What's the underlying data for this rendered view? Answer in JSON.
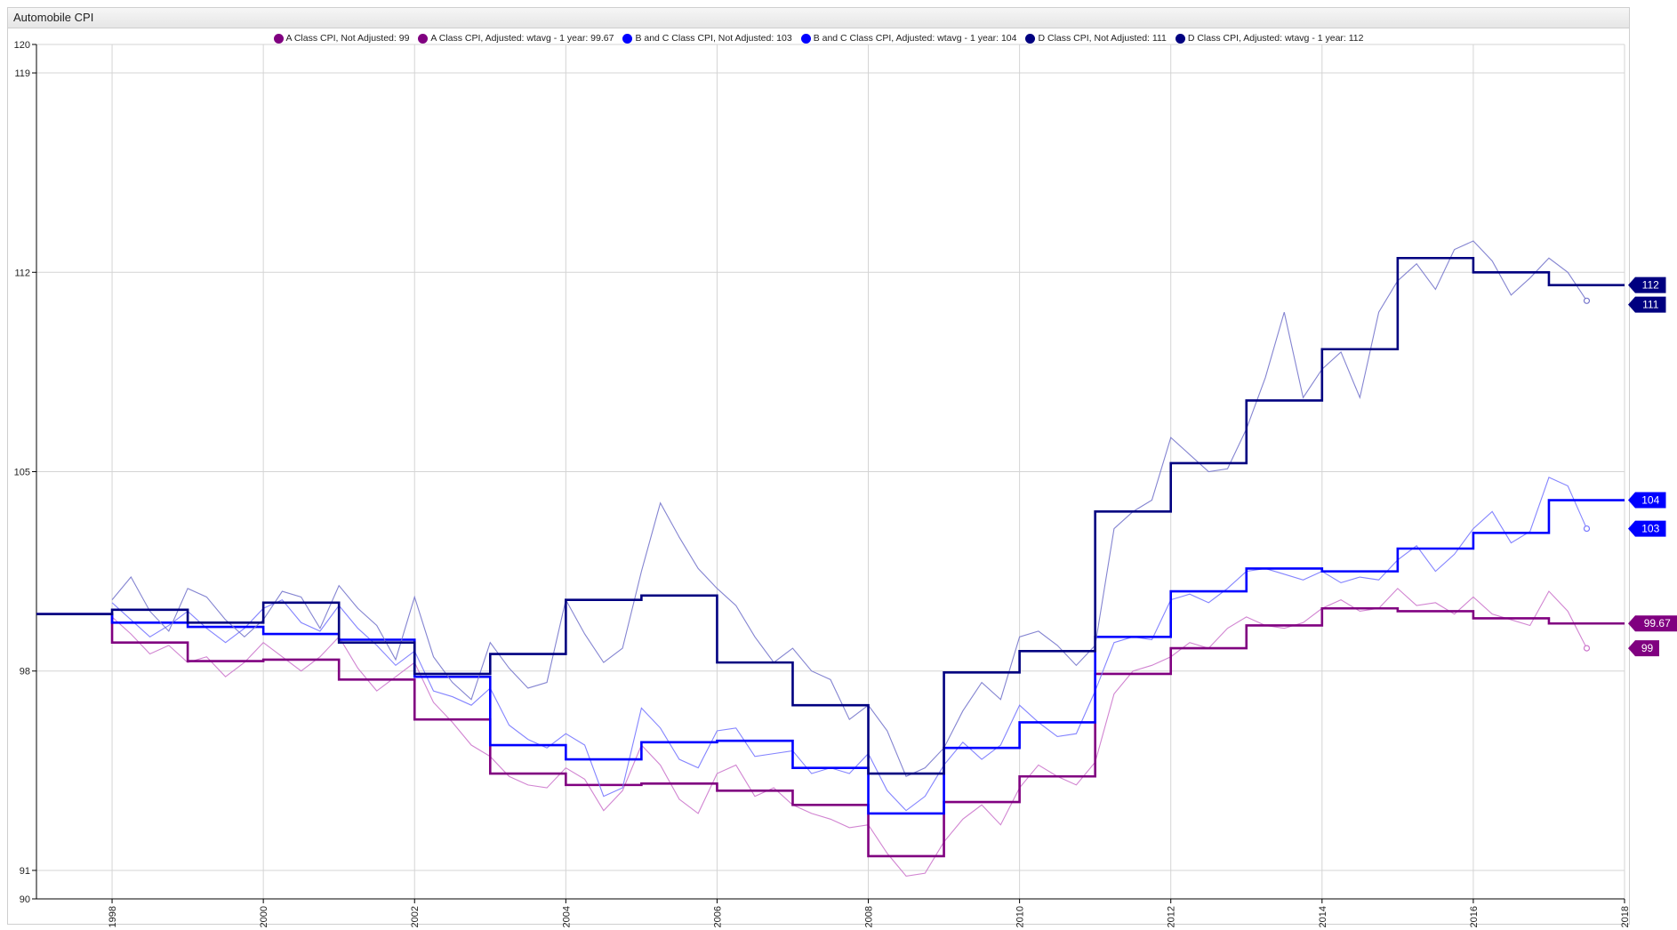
{
  "window": {
    "title": "Automobile CPI"
  },
  "colors": {
    "a_class": "#800080",
    "a_class_thin": "#cc77cc",
    "bc_class": "#0000ff",
    "bc_class_thin": "#7777ff",
    "d_class": "#000080",
    "d_class_thin": "#7777cc",
    "grid": "#d4d4d4"
  },
  "chart_data": {
    "type": "line",
    "title": "Automobile CPI",
    "xlabel": "",
    "ylabel": "",
    "xlim": [
      1997.0,
      2018.0
    ],
    "ylim": [
      90,
      120
    ],
    "x_ticks": [
      "1998",
      "2000",
      "2002",
      "2004",
      "2006",
      "2008",
      "2010",
      "2012",
      "2014",
      "2016",
      "2018"
    ],
    "y_ticks": [
      90,
      91,
      98,
      105,
      112,
      119,
      120
    ],
    "grid": true,
    "legend_position": "top",
    "series": [
      {
        "name": "A Class CPI, Not Adjusted: 99",
        "color": "#cc77cc",
        "style": "thin",
        "end_label": "99",
        "x": [
          1998.0,
          1998.25,
          1998.5,
          1998.75,
          1999.0,
          1999.25,
          1999.5,
          1999.75,
          2000.0,
          2000.25,
          2000.5,
          2000.75,
          2001.0,
          2001.25,
          2001.5,
          2001.75,
          2002.0,
          2002.25,
          2002.5,
          2002.75,
          2003.0,
          2003.25,
          2003.5,
          2003.75,
          2004.0,
          2004.25,
          2004.5,
          2004.75,
          2005.0,
          2005.25,
          2005.5,
          2005.75,
          2006.0,
          2006.25,
          2006.5,
          2006.75,
          2007.0,
          2007.25,
          2007.5,
          2007.75,
          2008.0,
          2008.25,
          2008.5,
          2008.75,
          2009.0,
          2009.25,
          2009.5,
          2009.75,
          2010.0,
          2010.25,
          2010.5,
          2010.75,
          2011.0,
          2011.25,
          2011.5,
          2011.75,
          2012.0,
          2012.25,
          2012.5,
          2012.75,
          2013.0,
          2013.25,
          2013.5,
          2013.75,
          2014.0,
          2014.25,
          2014.5,
          2014.75,
          2015.0,
          2015.25,
          2015.5,
          2015.75,
          2016.0,
          2016.25,
          2016.5,
          2016.75,
          2017.0,
          2017.25,
          2017.5
        ],
        "values": [
          99.9,
          99.3,
          98.6,
          98.9,
          98.3,
          98.5,
          97.8,
          98.3,
          99.0,
          98.5,
          98.0,
          98.5,
          99.2,
          98.1,
          97.3,
          97.8,
          98.3,
          96.9,
          96.2,
          95.4,
          95.0,
          94.3,
          94.0,
          93.9,
          94.6,
          94.2,
          93.1,
          93.8,
          95.4,
          94.7,
          93.5,
          93.0,
          94.4,
          94.7,
          93.6,
          93.9,
          93.3,
          93.0,
          92.8,
          92.5,
          92.6,
          91.6,
          90.8,
          90.9,
          92.0,
          92.8,
          93.3,
          92.6,
          93.9,
          94.7,
          94.3,
          94.0,
          94.8,
          97.2,
          98.0,
          98.2,
          98.5,
          99.0,
          98.8,
          99.5,
          99.9,
          99.6,
          99.5,
          99.7,
          100.2,
          100.5,
          100.1,
          100.2,
          100.9,
          100.3,
          100.4,
          100.0,
          100.6,
          100.0,
          99.8,
          99.6,
          100.8,
          100.1,
          98.8
        ]
      },
      {
        "name": "A Class CPI, Adjusted: wtavg - 1 year: 99.67",
        "color": "#800080",
        "style": "step",
        "end_label": "99.67",
        "x": [
          1997.0,
          1998.0,
          1999.0,
          2000.0,
          2001.0,
          2002.0,
          2003.0,
          2004.0,
          2005.0,
          2006.0,
          2007.0,
          2008.0,
          2009.0,
          2010.0,
          2011.0,
          2012.0,
          2013.0,
          2014.0,
          2015.0,
          2016.0,
          2017.0,
          2018.0
        ],
        "values": [
          100.0,
          99.0,
          98.35,
          98.4,
          97.7,
          96.3,
          94.4,
          94.0,
          94.05,
          93.8,
          93.3,
          91.5,
          93.4,
          94.3,
          97.9,
          98.8,
          99.6,
          100.2,
          100.1,
          99.85,
          99.67,
          99.67
        ]
      },
      {
        "name": "B and C Class CPI, Not Adjusted: 103",
        "color": "#7777ff",
        "style": "thin",
        "end_label": "103",
        "x": [
          1998.0,
          1998.25,
          1998.5,
          1998.75,
          1999.0,
          1999.25,
          1999.5,
          1999.75,
          2000.0,
          2000.25,
          2000.5,
          2000.75,
          2001.0,
          2001.25,
          2001.5,
          2001.75,
          2002.0,
          2002.25,
          2002.5,
          2002.75,
          2003.0,
          2003.25,
          2003.5,
          2003.75,
          2004.0,
          2004.25,
          2004.5,
          2004.75,
          2005.0,
          2005.25,
          2005.5,
          2005.75,
          2006.0,
          2006.25,
          2006.5,
          2006.75,
          2007.0,
          2007.25,
          2007.5,
          2007.75,
          2008.0,
          2008.25,
          2008.5,
          2008.75,
          2009.0,
          2009.25,
          2009.5,
          2009.75,
          2010.0,
          2010.25,
          2010.5,
          2010.75,
          2011.0,
          2011.25,
          2011.5,
          2011.75,
          2012.0,
          2012.25,
          2012.5,
          2012.75,
          2013.0,
          2013.25,
          2013.5,
          2013.75,
          2014.0,
          2014.25,
          2014.5,
          2014.75,
          2015.0,
          2015.25,
          2015.5,
          2015.75,
          2016.0,
          2016.25,
          2016.5,
          2016.75,
          2017.0,
          2017.25,
          2017.5
        ],
        "values": [
          100.4,
          99.8,
          99.2,
          99.6,
          100.1,
          99.5,
          99.0,
          99.5,
          100.2,
          100.5,
          99.7,
          99.4,
          100.3,
          99.5,
          98.9,
          98.2,
          98.7,
          97.3,
          97.1,
          96.8,
          97.4,
          96.1,
          95.6,
          95.3,
          95.8,
          95.4,
          93.6,
          93.9,
          96.7,
          96.0,
          94.9,
          94.6,
          95.9,
          96.0,
          95.0,
          95.1,
          95.2,
          94.4,
          94.6,
          94.4,
          95.1,
          93.8,
          93.1,
          93.6,
          94.7,
          95.5,
          94.9,
          95.4,
          96.8,
          96.2,
          95.7,
          95.8,
          97.3,
          99.0,
          99.2,
          99.1,
          100.5,
          100.7,
          100.4,
          100.9,
          101.5,
          101.6,
          101.4,
          101.2,
          101.5,
          101.1,
          101.3,
          101.2,
          101.9,
          102.4,
          101.5,
          102.1,
          103.0,
          103.6,
          102.5,
          102.9,
          104.8,
          104.5,
          103.0
        ]
      },
      {
        "name": "B and C Class CPI, Adjusted: wtavg - 1 year: 104",
        "color": "#0000ff",
        "style": "step",
        "end_label": "104",
        "x": [
          1997.0,
          1998.0,
          1999.0,
          2000.0,
          2001.0,
          2002.0,
          2003.0,
          2004.0,
          2005.0,
          2006.0,
          2007.0,
          2008.0,
          2009.0,
          2010.0,
          2011.0,
          2012.0,
          2013.0,
          2014.0,
          2015.0,
          2016.0,
          2017.0,
          2018.0
        ],
        "values": [
          100.0,
          99.7,
          99.55,
          99.3,
          99.1,
          97.8,
          95.4,
          94.9,
          95.5,
          95.55,
          94.6,
          93.0,
          95.3,
          96.2,
          99.2,
          100.8,
          101.6,
          101.5,
          102.3,
          102.85,
          104.0,
          104.0
        ]
      },
      {
        "name": "D Class CPI, Not Adjusted: 111",
        "color": "#7777cc",
        "style": "thin",
        "end_label": "111",
        "x": [
          1998.0,
          1998.25,
          1998.5,
          1998.75,
          1999.0,
          1999.25,
          1999.5,
          1999.75,
          2000.0,
          2000.25,
          2000.5,
          2000.75,
          2001.0,
          2001.25,
          2001.5,
          2001.75,
          2002.0,
          2002.25,
          2002.5,
          2002.75,
          2003.0,
          2003.25,
          2003.5,
          2003.75,
          2004.0,
          2004.25,
          2004.5,
          2004.75,
          2005.0,
          2005.25,
          2005.5,
          2005.75,
          2006.0,
          2006.25,
          2006.5,
          2006.75,
          2007.0,
          2007.25,
          2007.5,
          2007.75,
          2008.0,
          2008.25,
          2008.5,
          2008.75,
          2009.0,
          2009.25,
          2009.5,
          2009.75,
          2010.0,
          2010.25,
          2010.5,
          2010.75,
          2011.0,
          2011.25,
          2011.5,
          2011.75,
          2012.0,
          2012.25,
          2012.5,
          2012.75,
          2013.0,
          2013.25,
          2013.5,
          2013.75,
          2014.0,
          2014.25,
          2014.5,
          2014.75,
          2015.0,
          2015.25,
          2015.5,
          2015.75,
          2016.0,
          2016.25,
          2016.5,
          2016.75,
          2017.0,
          2017.25,
          2017.5
        ],
        "values": [
          100.5,
          101.3,
          100.1,
          99.4,
          100.9,
          100.6,
          99.8,
          99.2,
          99.8,
          100.8,
          100.6,
          99.5,
          101.0,
          100.2,
          99.6,
          98.4,
          100.6,
          98.5,
          97.6,
          97.0,
          99.0,
          98.1,
          97.4,
          97.6,
          100.5,
          99.3,
          98.3,
          98.8,
          101.5,
          103.9,
          102.7,
          101.6,
          100.9,
          100.3,
          99.2,
          98.3,
          98.8,
          98.0,
          97.7,
          96.3,
          96.8,
          95.9,
          94.3,
          94.6,
          95.3,
          96.6,
          97.6,
          97.0,
          99.2,
          99.4,
          98.9,
          98.2,
          98.9,
          103.0,
          103.6,
          104.0,
          106.2,
          105.6,
          105.0,
          105.1,
          106.5,
          108.3,
          110.6,
          107.6,
          108.6,
          109.2,
          107.6,
          110.6,
          111.7,
          112.3,
          111.4,
          112.8,
          113.1,
          112.4,
          111.2,
          111.8,
          112.5,
          112.0,
          111.0
        ]
      },
      {
        "name": "D Class CPI, Adjusted: wtavg - 1 year: 112",
        "color": "#000080",
        "style": "step",
        "end_label": "112",
        "x": [
          1997.0,
          1998.0,
          1999.0,
          2000.0,
          2001.0,
          2002.0,
          2003.0,
          2004.0,
          2005.0,
          2006.0,
          2007.0,
          2008.0,
          2009.0,
          2010.0,
          2011.0,
          2012.0,
          2013.0,
          2014.0,
          2015.0,
          2016.0,
          2017.0,
          2018.0
        ],
        "values": [
          100.0,
          100.15,
          99.7,
          100.4,
          99.0,
          97.9,
          98.6,
          100.5,
          100.65,
          98.3,
          96.8,
          94.4,
          97.95,
          98.7,
          103.6,
          105.3,
          107.5,
          109.3,
          112.5,
          112.0,
          111.55,
          111.55
        ]
      }
    ]
  }
}
